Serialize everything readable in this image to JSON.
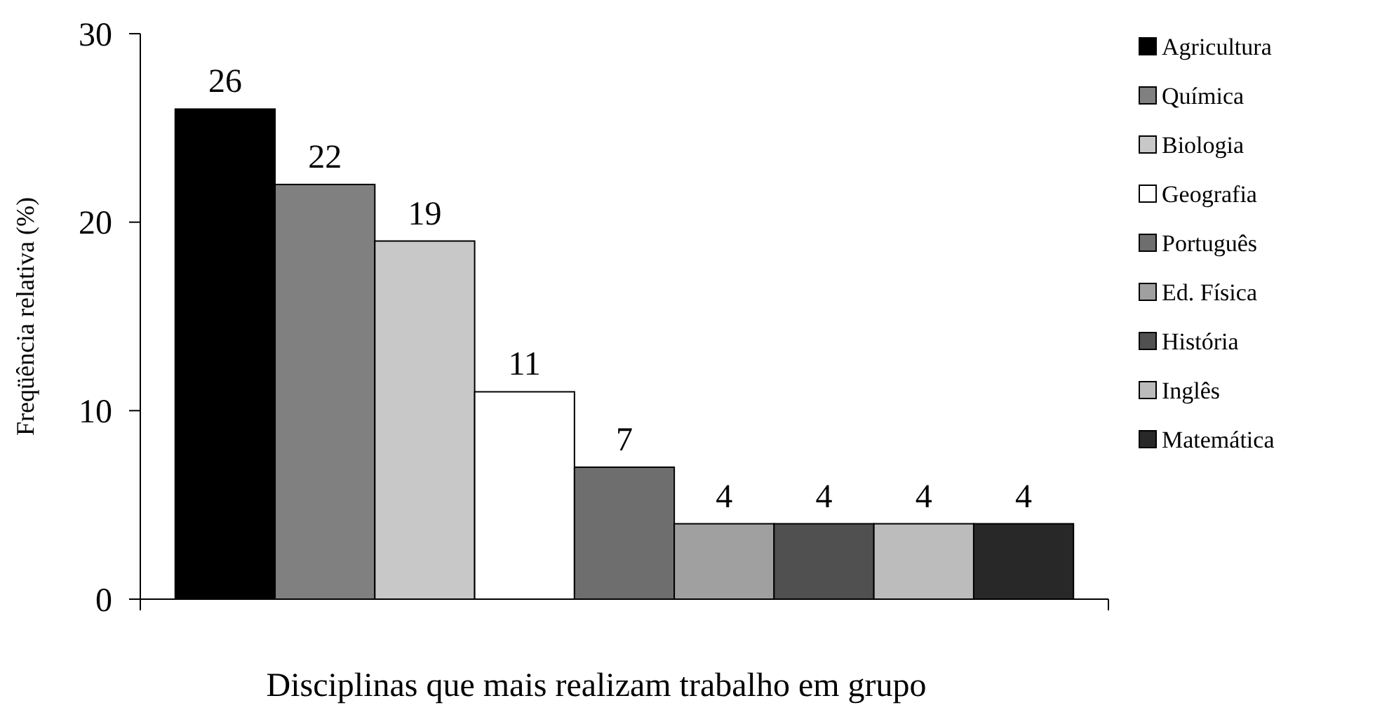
{
  "chart_data": {
    "type": "bar",
    "xlabel": "Disciplinas que mais realizam trabalho em grupo",
    "ylabel": "Freqüência relativa (%)",
    "categories": [
      null,
      null,
      null,
      null,
      null,
      null,
      null,
      null,
      null
    ],
    "ylim": [
      0,
      30
    ],
    "yticks": [
      0,
      10,
      20,
      30
    ],
    "data_labels": true,
    "legend": "right",
    "grid": false,
    "series": [
      {
        "name": "Agricultura",
        "color": "#000000",
        "values": [
          26,
          null,
          null,
          null,
          null,
          null,
          null,
          null,
          null
        ]
      },
      {
        "name": "Química",
        "color": "#808080",
        "values": [
          null,
          22,
          null,
          null,
          null,
          null,
          null,
          null,
          null
        ]
      },
      {
        "name": "Biologia",
        "color": "#c8c8c8",
        "values": [
          null,
          null,
          19,
          null,
          null,
          null,
          null,
          null,
          null
        ]
      },
      {
        "name": "Geografia",
        "color": "#ffffff",
        "values": [
          null,
          null,
          null,
          11,
          null,
          null,
          null,
          null,
          null
        ]
      },
      {
        "name": "Português",
        "color": "#6e6e6e",
        "values": [
          null,
          null,
          null,
          null,
          7,
          null,
          null,
          null,
          null
        ]
      },
      {
        "name": "Ed. Física",
        "color": "#a0a0a0",
        "values": [
          null,
          null,
          null,
          null,
          null,
          4,
          null,
          null,
          null
        ]
      },
      {
        "name": "História",
        "color": "#505050",
        "values": [
          null,
          null,
          null,
          null,
          null,
          null,
          4,
          null,
          null
        ]
      },
      {
        "name": "Inglês",
        "color": "#bcbcbc",
        "values": [
          null,
          null,
          null,
          null,
          null,
          null,
          null,
          4,
          null
        ]
      },
      {
        "name": "Matemática",
        "color": "#282828",
        "values": [
          null,
          null,
          null,
          null,
          null,
          null,
          null,
          null,
          4
        ]
      }
    ]
  }
}
